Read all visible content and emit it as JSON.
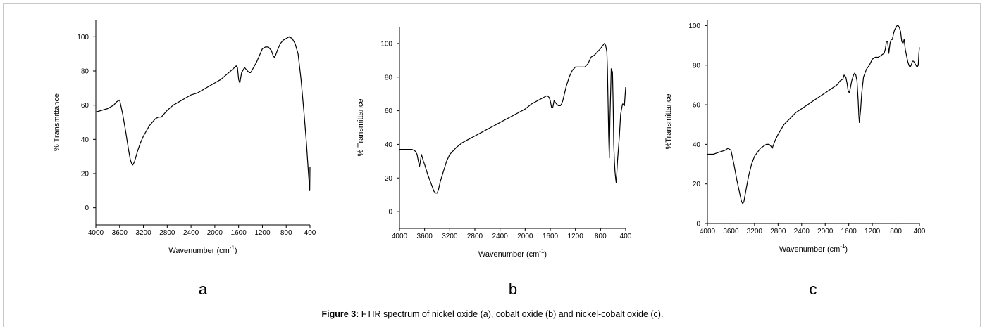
{
  "caption": {
    "label": "Figure 3:",
    "text": " FTIR spectrum of nickel oxide (a), cobalt oxide (b) and nickel-cobalt oxide (c)."
  },
  "chart_data": [
    {
      "type": "line",
      "panel_label": "a",
      "xlabel": "Wavenumber (cm",
      "xlabel_sup": "-1",
      "xlabel_tail": ")",
      "ylabel": "% Transmittance",
      "xlim": [
        4000,
        400
      ],
      "ylim": [
        -10,
        110
      ],
      "x_ticks": [
        4000,
        3600,
        3200,
        2800,
        2400,
        2000,
        1600,
        1200,
        800,
        400
      ],
      "y_ticks": [
        0,
        20,
        40,
        60,
        80,
        100
      ],
      "grid": false,
      "series": [
        {
          "x": [
            4000,
            3900,
            3800,
            3700,
            3650,
            3600,
            3550,
            3500,
            3450,
            3420,
            3400,
            3380,
            3350,
            3300,
            3250,
            3200,
            3100,
            3000,
            2950,
            2900,
            2800,
            2700,
            2600,
            2500,
            2400,
            2300,
            2200,
            2100,
            2000,
            1900,
            1800,
            1700,
            1670,
            1640,
            1620,
            1600,
            1580,
            1550,
            1500,
            1450,
            1420,
            1400,
            1380,
            1350,
            1300,
            1250,
            1200,
            1150,
            1100,
            1050,
            1020,
            1000,
            980,
            950,
            900,
            850,
            800,
            750,
            700,
            650,
            600,
            550,
            500,
            460,
            430,
            415,
            405,
            400
          ],
          "y": [
            56,
            57,
            58,
            60,
            62,
            63,
            55,
            45,
            34,
            28,
            26,
            25,
            27,
            33,
            38,
            42,
            48,
            52,
            53,
            53,
            57,
            60,
            62,
            64,
            66,
            67,
            69,
            71,
            73,
            75,
            78,
            81,
            82,
            83,
            82,
            75,
            73,
            79,
            82,
            80,
            79,
            79,
            80,
            82,
            85,
            89,
            93,
            94,
            94,
            92,
            89,
            88,
            89,
            92,
            96,
            98,
            99,
            100,
            99,
            96,
            90,
            75,
            55,
            38,
            22,
            15,
            10,
            24
          ]
        }
      ]
    },
    {
      "type": "line",
      "panel_label": "b",
      "xlabel": "Wavenumber (cm",
      "xlabel_sup": "-1",
      "xlabel_tail": ")",
      "ylabel": "% Transmittance",
      "xlim": [
        4000,
        400
      ],
      "ylim": [
        -10,
        110
      ],
      "x_ticks": [
        4000,
        3600,
        3200,
        2800,
        2400,
        2000,
        1600,
        1200,
        800,
        400
      ],
      "y_ticks": [
        0,
        20,
        40,
        60,
        80,
        100
      ],
      "grid": false,
      "series": [
        {
          "x": [
            4000,
            3900,
            3800,
            3750,
            3720,
            3700,
            3680,
            3650,
            3620,
            3600,
            3550,
            3500,
            3450,
            3420,
            3400,
            3380,
            3350,
            3300,
            3250,
            3200,
            3100,
            3000,
            2900,
            2800,
            2700,
            2600,
            2500,
            2400,
            2300,
            2200,
            2100,
            2000,
            1900,
            1800,
            1700,
            1650,
            1620,
            1600,
            1580,
            1560,
            1540,
            1520,
            1500,
            1470,
            1440,
            1420,
            1400,
            1350,
            1300,
            1250,
            1200,
            1150,
            1100,
            1050,
            1000,
            950,
            900,
            850,
            800,
            760,
            740,
            720,
            700,
            690,
            680,
            670,
            660,
            650,
            630,
            610,
            600,
            590,
            580,
            570,
            560,
            550,
            530,
            500,
            480,
            460,
            450,
            440,
            420,
            400
          ],
          "y": [
            37,
            37,
            37,
            36,
            34,
            30,
            27,
            34,
            30,
            28,
            22,
            17,
            12,
            11,
            11,
            13,
            18,
            24,
            30,
            34,
            38,
            41,
            43,
            45,
            47,
            49,
            51,
            53,
            55,
            57,
            59,
            61,
            64,
            66,
            68,
            69,
            68,
            66,
            62,
            62,
            66,
            65,
            64,
            63,
            63,
            64,
            66,
            74,
            80,
            84,
            86,
            86,
            86,
            86,
            88,
            92,
            93,
            95,
            97,
            99,
            100,
            99,
            95,
            85,
            65,
            45,
            32,
            55,
            85,
            83,
            65,
            40,
            30,
            24,
            20,
            17,
            30,
            45,
            58,
            62,
            64,
            64,
            63,
            74
          ]
        }
      ]
    },
    {
      "type": "line",
      "panel_label": "c",
      "xlabel": "Wavenumber (cm",
      "xlabel_sup": "-1",
      "xlabel_tail": ")",
      "ylabel": "%Transmittance",
      "xlim": [
        4000,
        400
      ],
      "ylim": [
        0,
        103
      ],
      "x_ticks": [
        4000,
        3600,
        3200,
        2800,
        2400,
        2000,
        1600,
        1200,
        800,
        400
      ],
      "y_ticks": [
        0,
        20,
        40,
        60,
        80,
        100
      ],
      "grid": false,
      "series": [
        {
          "x": [
            4000,
            3900,
            3800,
            3700,
            3650,
            3600,
            3550,
            3500,
            3450,
            3420,
            3400,
            3380,
            3350,
            3300,
            3250,
            3200,
            3100,
            3000,
            2950,
            2920,
            2900,
            2850,
            2800,
            2700,
            2600,
            2500,
            2400,
            2300,
            2200,
            2100,
            2000,
            1900,
            1800,
            1750,
            1700,
            1680,
            1650,
            1630,
            1610,
            1590,
            1570,
            1550,
            1520,
            1500,
            1480,
            1460,
            1440,
            1430,
            1420,
            1400,
            1380,
            1350,
            1300,
            1250,
            1200,
            1150,
            1100,
            1050,
            1000,
            980,
            960,
            940,
            920,
            900,
            880,
            860,
            840,
            820,
            800,
            780,
            760,
            740,
            720,
            700,
            680,
            660,
            640,
            620,
            600,
            580,
            560,
            540,
            520,
            500,
            480,
            460,
            440,
            420,
            410,
            400
          ],
          "y": [
            35,
            35,
            36,
            37,
            38,
            37,
            30,
            22,
            15,
            11,
            10,
            11,
            16,
            24,
            30,
            34,
            38,
            40,
            40,
            39,
            38,
            42,
            45,
            50,
            53,
            56,
            58,
            60,
            62,
            64,
            66,
            68,
            70,
            72,
            73,
            75,
            74,
            71,
            67,
            66,
            69,
            72,
            75,
            76,
            75,
            72,
            62,
            55,
            51,
            57,
            66,
            74,
            78,
            80,
            83,
            84,
            84,
            85,
            86,
            88,
            92,
            92,
            86,
            91,
            93,
            93,
            96,
            98,
            99,
            100,
            100,
            99,
            97,
            92,
            91,
            93,
            88,
            85,
            82,
            80,
            79,
            80,
            82,
            82,
            81,
            80,
            79,
            80,
            86,
            89
          ]
        }
      ]
    }
  ]
}
